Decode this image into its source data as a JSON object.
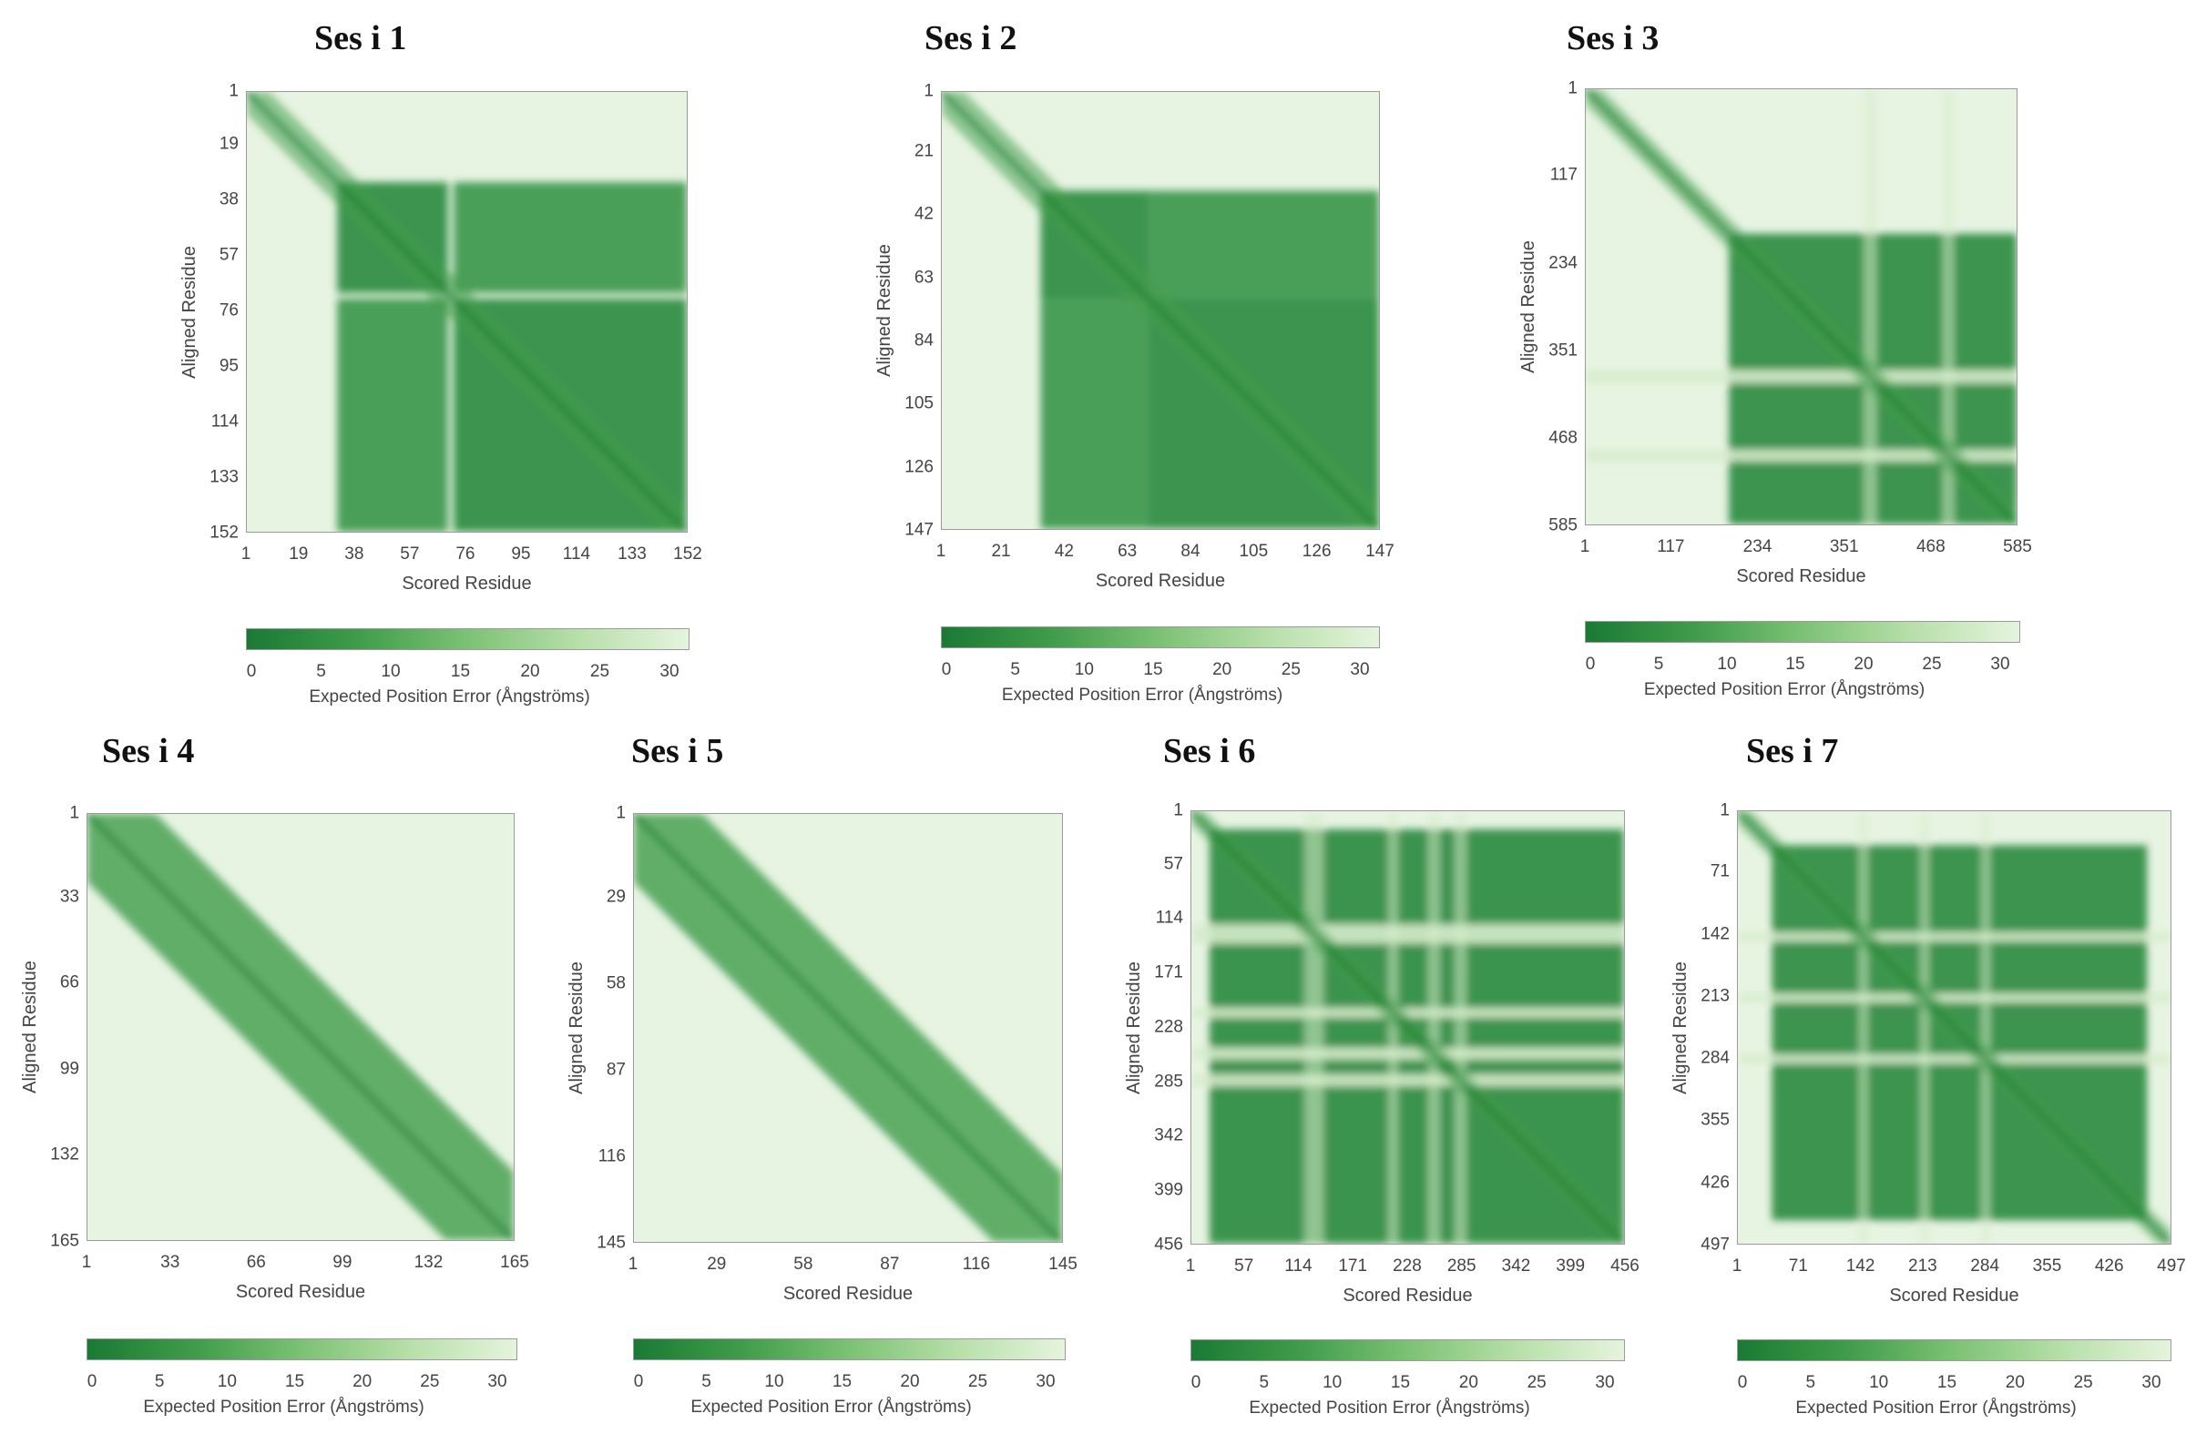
{
  "colors": {
    "low_error": "#1a7a34",
    "mid_error": "#7cc274",
    "high_error": "#e5f4dd",
    "background": "#e7f4e2"
  },
  "chart_data": [
    {
      "type": "heatmap",
      "title": "Ses i 1",
      "xlabel": "Scored Residue",
      "ylabel": "Aligned Residue",
      "n_residues": 152,
      "ticks": [
        1,
        19,
        38,
        57,
        76,
        95,
        114,
        133,
        152
      ],
      "domains": [
        [
          32,
          70
        ],
        [
          72,
          152
        ]
      ],
      "gaps": [],
      "diag_band": 0.05,
      "colorbar": {
        "label": "Expected Position Error (Ångströms)",
        "ticks": [
          0,
          5,
          10,
          15,
          20,
          25,
          30
        ],
        "range": [
          0,
          30
        ]
      }
    },
    {
      "type": "heatmap",
      "title": "Ses i 2",
      "xlabel": "Scored Residue",
      "ylabel": "Aligned Residue",
      "n_residues": 147,
      "ticks": [
        1,
        21,
        42,
        63,
        84,
        105,
        126,
        147
      ],
      "domains": [
        [
          34,
          70
        ],
        [
          70,
          147
        ]
      ],
      "gaps": [],
      "diag_band": 0.05,
      "colorbar": {
        "label": "Expected Position Error (Ångströms)",
        "ticks": [
          0,
          5,
          10,
          15,
          20,
          25,
          30
        ],
        "range": [
          0,
          30
        ]
      }
    },
    {
      "type": "heatmap",
      "title": "Ses i 3",
      "xlabel": "Scored Residue",
      "ylabel": "Aligned Residue",
      "n_residues": 585,
      "ticks": [
        1,
        117,
        234,
        351,
        468,
        585
      ],
      "domains": [
        [
          195,
          585
        ]
      ],
      "gaps": [
        [
          378,
          395
        ],
        [
          485,
          500
        ]
      ],
      "diag_band": 0.035,
      "colorbar": {
        "label": "Expected Position Error (Ångströms)",
        "ticks": [
          0,
          5,
          10,
          15,
          20,
          25,
          30
        ],
        "range": [
          0,
          30
        ]
      }
    },
    {
      "type": "heatmap",
      "title": "Ses i 4",
      "xlabel": "Scored Residue",
      "ylabel": "Aligned Residue",
      "n_residues": 165,
      "ticks": [
        1,
        33,
        66,
        99,
        132,
        165
      ],
      "domains": [],
      "gaps": [],
      "diag_band": 0.16,
      "colorbar": {
        "label": "Expected Position Error (Ångströms)",
        "ticks": [
          0,
          5,
          10,
          15,
          20,
          25,
          30
        ],
        "range": [
          0,
          30
        ]
      }
    },
    {
      "type": "heatmap",
      "title": "Ses i 5",
      "xlabel": "Scored Residue",
      "ylabel": "Aligned Residue",
      "n_residues": 145,
      "ticks": [
        1,
        29,
        58,
        87,
        116,
        145
      ],
      "domains": [],
      "gaps": [],
      "diag_band": 0.16,
      "colorbar": {
        "label": "Expected Position Error (Ångströms)",
        "ticks": [
          0,
          5,
          10,
          15,
          20,
          25,
          30
        ],
        "range": [
          0,
          30
        ]
      }
    },
    {
      "type": "heatmap",
      "title": "Ses i 6",
      "xlabel": "Scored Residue",
      "ylabel": "Aligned Residue",
      "n_residues": 456,
      "ticks": [
        1,
        57,
        114,
        171,
        228,
        285,
        342,
        399,
        456
      ],
      "domains": [
        [
          20,
          456
        ]
      ],
      "gaps": [
        [
          120,
          140
        ],
        [
          208,
          218
        ],
        [
          250,
          262
        ],
        [
          278,
          290
        ]
      ],
      "diag_band": 0.03,
      "colorbar": {
        "label": "Expected Position Error (Ångströms)",
        "ticks": [
          0,
          5,
          10,
          15,
          20,
          25,
          30
        ],
        "range": [
          0,
          30
        ]
      }
    },
    {
      "type": "heatmap",
      "title": "Ses i 7",
      "xlabel": "Scored Residue",
      "ylabel": "Aligned Residue",
      "n_residues": 497,
      "ticks": [
        1,
        71,
        142,
        213,
        284,
        355,
        426,
        497
      ],
      "domains": [
        [
          40,
          470
        ]
      ],
      "gaps": [
        [
          140,
          150
        ],
        [
          210,
          220
        ],
        [
          280,
          290
        ]
      ],
      "diag_band": 0.03,
      "colorbar": {
        "label": "Expected Position Error (Ångströms)",
        "ticks": [
          0,
          5,
          10,
          15,
          20,
          25,
          30
        ],
        "range": [
          0,
          30
        ]
      }
    }
  ]
}
